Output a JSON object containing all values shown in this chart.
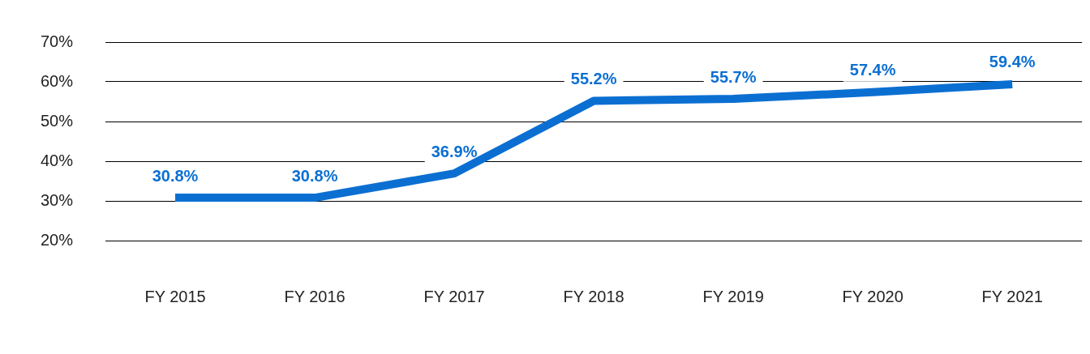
{
  "chart_data": {
    "type": "line",
    "categories": [
      "FY 2015",
      "FY 2016",
      "FY 2017",
      "FY 2018",
      "FY 2019",
      "FY 2020",
      "FY 2021"
    ],
    "series": [
      {
        "color": "#0b6fd2",
        "values": [
          30.8,
          30.8,
          36.9,
          55.2,
          55.7,
          57.4,
          59.4
        ],
        "value_labels": [
          "30.8%",
          "30.8%",
          "36.9%",
          "55.2%",
          "55.7%",
          "57.4%",
          "59.4%"
        ]
      }
    ],
    "ylim": [
      20,
      70
    ],
    "yticks": [
      {
        "value": 20,
        "label": "20%"
      },
      {
        "value": 30,
        "label": "30%"
      },
      {
        "value": 40,
        "label": "40%"
      },
      {
        "value": 50,
        "label": "50%"
      },
      {
        "value": 60,
        "label": "60%"
      },
      {
        "value": 70,
        "label": "70%"
      }
    ],
    "grid": "y",
    "legend": false,
    "marker": "none",
    "line_style": "solid"
  }
}
